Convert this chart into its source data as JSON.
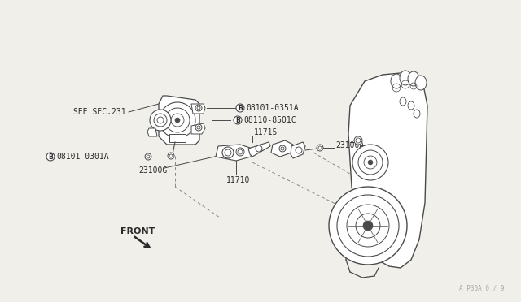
{
  "bg_color": "#f0efea",
  "line_color": "#4a4a4a",
  "text_color": "#2a2a2a",
  "watermark": "A P30A 0 / 9",
  "labels": {
    "see_sec": "SEE SEC.231",
    "b1": "08101-0351A",
    "b2": "08110-8501C",
    "b3": "08101-0301A",
    "p1": "23100G",
    "p2": "11715",
    "p3": "23100A",
    "p4": "11710",
    "front": "FRONT"
  },
  "figsize": [
    6.4,
    3.72
  ],
  "dpi": 100
}
